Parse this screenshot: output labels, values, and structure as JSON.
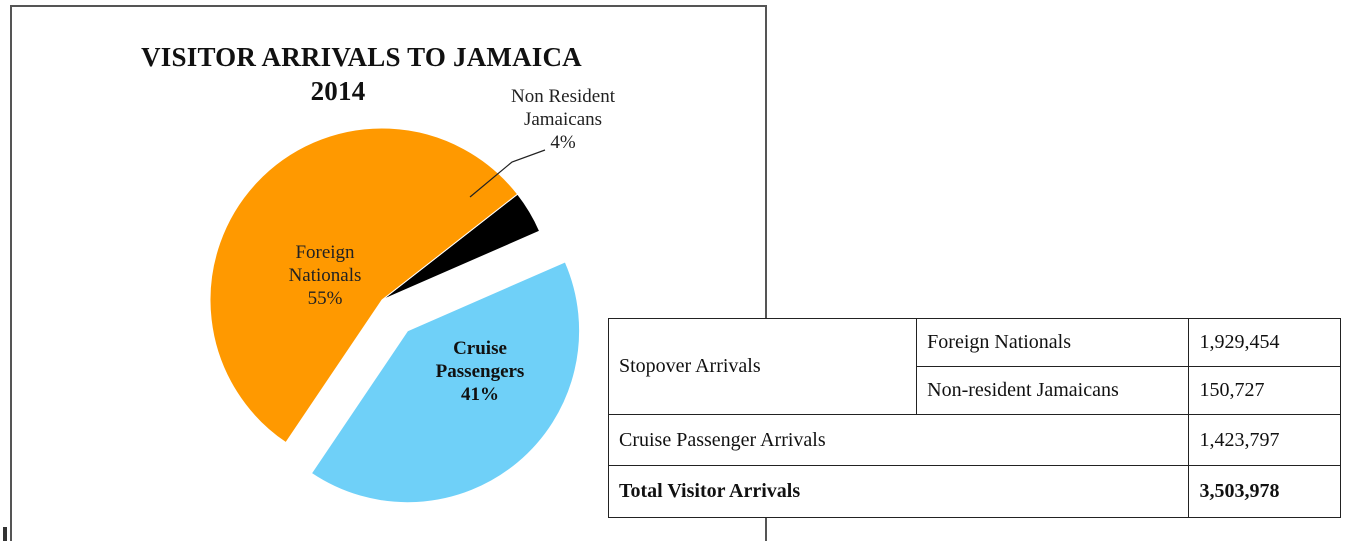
{
  "chart_data": {
    "type": "pie",
    "title": "VISITOR ARRIVALS TO JAMAICA",
    "subtitle": "2014",
    "categories": [
      "Foreign Nationals",
      "Cruise Passengers",
      "Non Resident Jamaicans"
    ],
    "values": [
      55,
      41,
      4
    ],
    "value_labels": [
      "55%",
      "41%",
      "4%"
    ],
    "exploded": "Cruise Passengers",
    "legend": "none",
    "colors": {
      "Foreign Nationals": "#ff9900",
      "Cruise Passengers": "#6fd0f8",
      "Non Resident Jamaicans": "#000000"
    },
    "labels": {
      "foreign": {
        "line1": "Foreign",
        "line2": "Nationals",
        "pct": "55%"
      },
      "cruise": {
        "line1": "Cruise",
        "line2": "Passengers",
        "pct": "41%"
      },
      "nonres": {
        "line1": "Non Resident",
        "line2": "Jamaicans",
        "pct": "4%"
      }
    }
  },
  "table": {
    "rows": [
      {
        "label": "Stopover Arrivals",
        "sub": "Foreign Nationals",
        "value": "1,929,454"
      },
      {
        "sub": "Non-resident Jamaicans",
        "value": "150,727"
      },
      {
        "label": "Cruise Passenger Arrivals",
        "value": "1,423,797"
      },
      {
        "label": "Total Visitor Arrivals",
        "value": "3,503,978"
      }
    ]
  }
}
